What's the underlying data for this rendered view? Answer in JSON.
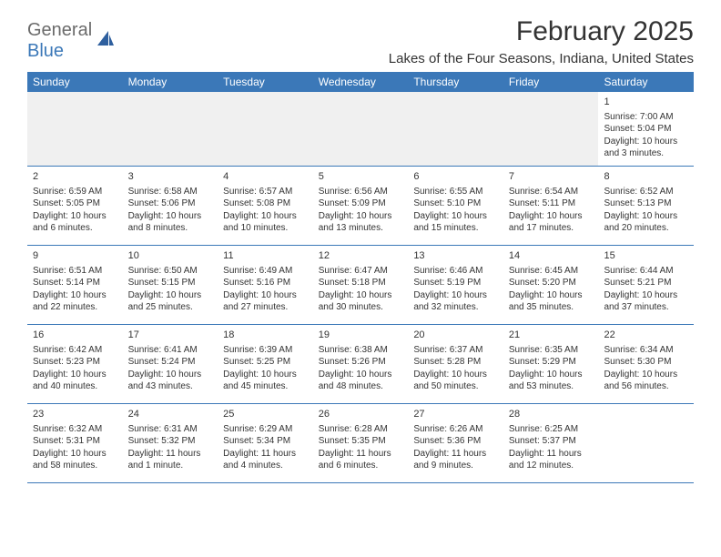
{
  "logo": {
    "top": "General",
    "bottom": "Blue"
  },
  "title": "February 2025",
  "location": "Lakes of the Four Seasons, Indiana, United States",
  "colors": {
    "header_bg": "#3b78b8",
    "header_text": "#ffffff",
    "border": "#3b78b8",
    "body_text": "#333333",
    "logo_top": "#6b6b6b",
    "logo_bottom": "#3b78b8",
    "background": "#ffffff",
    "blank_week_bg": "#f0f0f0"
  },
  "day_names": [
    "Sunday",
    "Monday",
    "Tuesday",
    "Wednesday",
    "Thursday",
    "Friday",
    "Saturday"
  ],
  "weeks": [
    [
      null,
      null,
      null,
      null,
      null,
      null,
      {
        "n": "1",
        "sunrise": "Sunrise: 7:00 AM",
        "sunset": "Sunset: 5:04 PM",
        "day1": "Daylight: 10 hours",
        "day2": "and 3 minutes."
      }
    ],
    [
      {
        "n": "2",
        "sunrise": "Sunrise: 6:59 AM",
        "sunset": "Sunset: 5:05 PM",
        "day1": "Daylight: 10 hours",
        "day2": "and 6 minutes."
      },
      {
        "n": "3",
        "sunrise": "Sunrise: 6:58 AM",
        "sunset": "Sunset: 5:06 PM",
        "day1": "Daylight: 10 hours",
        "day2": "and 8 minutes."
      },
      {
        "n": "4",
        "sunrise": "Sunrise: 6:57 AM",
        "sunset": "Sunset: 5:08 PM",
        "day1": "Daylight: 10 hours",
        "day2": "and 10 minutes."
      },
      {
        "n": "5",
        "sunrise": "Sunrise: 6:56 AM",
        "sunset": "Sunset: 5:09 PM",
        "day1": "Daylight: 10 hours",
        "day2": "and 13 minutes."
      },
      {
        "n": "6",
        "sunrise": "Sunrise: 6:55 AM",
        "sunset": "Sunset: 5:10 PM",
        "day1": "Daylight: 10 hours",
        "day2": "and 15 minutes."
      },
      {
        "n": "7",
        "sunrise": "Sunrise: 6:54 AM",
        "sunset": "Sunset: 5:11 PM",
        "day1": "Daylight: 10 hours",
        "day2": "and 17 minutes."
      },
      {
        "n": "8",
        "sunrise": "Sunrise: 6:52 AM",
        "sunset": "Sunset: 5:13 PM",
        "day1": "Daylight: 10 hours",
        "day2": "and 20 minutes."
      }
    ],
    [
      {
        "n": "9",
        "sunrise": "Sunrise: 6:51 AM",
        "sunset": "Sunset: 5:14 PM",
        "day1": "Daylight: 10 hours",
        "day2": "and 22 minutes."
      },
      {
        "n": "10",
        "sunrise": "Sunrise: 6:50 AM",
        "sunset": "Sunset: 5:15 PM",
        "day1": "Daylight: 10 hours",
        "day2": "and 25 minutes."
      },
      {
        "n": "11",
        "sunrise": "Sunrise: 6:49 AM",
        "sunset": "Sunset: 5:16 PM",
        "day1": "Daylight: 10 hours",
        "day2": "and 27 minutes."
      },
      {
        "n": "12",
        "sunrise": "Sunrise: 6:47 AM",
        "sunset": "Sunset: 5:18 PM",
        "day1": "Daylight: 10 hours",
        "day2": "and 30 minutes."
      },
      {
        "n": "13",
        "sunrise": "Sunrise: 6:46 AM",
        "sunset": "Sunset: 5:19 PM",
        "day1": "Daylight: 10 hours",
        "day2": "and 32 minutes."
      },
      {
        "n": "14",
        "sunrise": "Sunrise: 6:45 AM",
        "sunset": "Sunset: 5:20 PM",
        "day1": "Daylight: 10 hours",
        "day2": "and 35 minutes."
      },
      {
        "n": "15",
        "sunrise": "Sunrise: 6:44 AM",
        "sunset": "Sunset: 5:21 PM",
        "day1": "Daylight: 10 hours",
        "day2": "and 37 minutes."
      }
    ],
    [
      {
        "n": "16",
        "sunrise": "Sunrise: 6:42 AM",
        "sunset": "Sunset: 5:23 PM",
        "day1": "Daylight: 10 hours",
        "day2": "and 40 minutes."
      },
      {
        "n": "17",
        "sunrise": "Sunrise: 6:41 AM",
        "sunset": "Sunset: 5:24 PM",
        "day1": "Daylight: 10 hours",
        "day2": "and 43 minutes."
      },
      {
        "n": "18",
        "sunrise": "Sunrise: 6:39 AM",
        "sunset": "Sunset: 5:25 PM",
        "day1": "Daylight: 10 hours",
        "day2": "and 45 minutes."
      },
      {
        "n": "19",
        "sunrise": "Sunrise: 6:38 AM",
        "sunset": "Sunset: 5:26 PM",
        "day1": "Daylight: 10 hours",
        "day2": "and 48 minutes."
      },
      {
        "n": "20",
        "sunrise": "Sunrise: 6:37 AM",
        "sunset": "Sunset: 5:28 PM",
        "day1": "Daylight: 10 hours",
        "day2": "and 50 minutes."
      },
      {
        "n": "21",
        "sunrise": "Sunrise: 6:35 AM",
        "sunset": "Sunset: 5:29 PM",
        "day1": "Daylight: 10 hours",
        "day2": "and 53 minutes."
      },
      {
        "n": "22",
        "sunrise": "Sunrise: 6:34 AM",
        "sunset": "Sunset: 5:30 PM",
        "day1": "Daylight: 10 hours",
        "day2": "and 56 minutes."
      }
    ],
    [
      {
        "n": "23",
        "sunrise": "Sunrise: 6:32 AM",
        "sunset": "Sunset: 5:31 PM",
        "day1": "Daylight: 10 hours",
        "day2": "and 58 minutes."
      },
      {
        "n": "24",
        "sunrise": "Sunrise: 6:31 AM",
        "sunset": "Sunset: 5:32 PM",
        "day1": "Daylight: 11 hours",
        "day2": "and 1 minute."
      },
      {
        "n": "25",
        "sunrise": "Sunrise: 6:29 AM",
        "sunset": "Sunset: 5:34 PM",
        "day1": "Daylight: 11 hours",
        "day2": "and 4 minutes."
      },
      {
        "n": "26",
        "sunrise": "Sunrise: 6:28 AM",
        "sunset": "Sunset: 5:35 PM",
        "day1": "Daylight: 11 hours",
        "day2": "and 6 minutes."
      },
      {
        "n": "27",
        "sunrise": "Sunrise: 6:26 AM",
        "sunset": "Sunset: 5:36 PM",
        "day1": "Daylight: 11 hours",
        "day2": "and 9 minutes."
      },
      {
        "n": "28",
        "sunrise": "Sunrise: 6:25 AM",
        "sunset": "Sunset: 5:37 PM",
        "day1": "Daylight: 11 hours",
        "day2": "and 12 minutes."
      },
      null
    ]
  ]
}
